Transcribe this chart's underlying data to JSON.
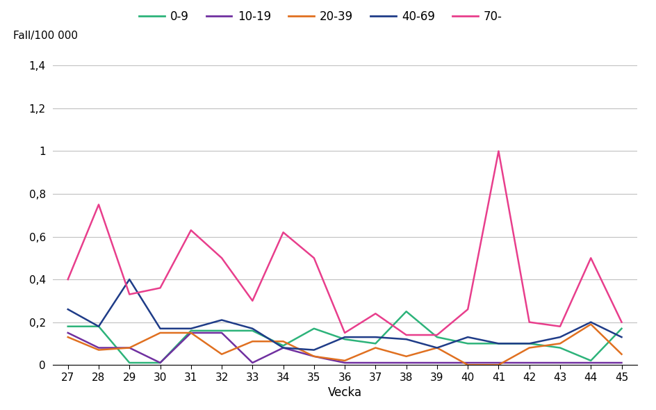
{
  "weeks": [
    27,
    28,
    29,
    30,
    31,
    32,
    33,
    34,
    35,
    36,
    37,
    38,
    39,
    40,
    41,
    42,
    43,
    44,
    45
  ],
  "series": {
    "0-9": [
      0.18,
      0.18,
      0.01,
      0.01,
      0.16,
      0.16,
      0.16,
      0.09,
      0.17,
      0.12,
      0.1,
      0.25,
      0.13,
      0.1,
      0.1,
      0.1,
      0.08,
      0.02,
      0.17
    ],
    "10-19": [
      0.15,
      0.08,
      0.08,
      0.01,
      0.15,
      0.15,
      0.01,
      0.08,
      0.04,
      0.01,
      0.01,
      0.01,
      0.01,
      0.01,
      0.01,
      0.01,
      0.01,
      0.01,
      0.01
    ],
    "20-39": [
      0.13,
      0.07,
      0.08,
      0.15,
      0.15,
      0.05,
      0.11,
      0.11,
      0.04,
      0.02,
      0.08,
      0.04,
      0.08,
      0.0,
      0.0,
      0.08,
      0.1,
      0.19,
      0.05
    ],
    "40-69": [
      0.26,
      0.18,
      0.4,
      0.17,
      0.17,
      0.21,
      0.17,
      0.08,
      0.07,
      0.13,
      0.13,
      0.12,
      0.08,
      0.13,
      0.1,
      0.1,
      0.13,
      0.2,
      0.13
    ],
    "70-": [
      0.4,
      0.75,
      0.33,
      0.36,
      0.63,
      0.5,
      0.3,
      0.62,
      0.5,
      0.15,
      0.24,
      0.14,
      0.14,
      0.26,
      1.0,
      0.2,
      0.18,
      0.5,
      0.2
    ]
  },
  "series_order": [
    "0-9",
    "10-19",
    "20-39",
    "40-69",
    "70-"
  ],
  "colors": {
    "0-9": "#2db37a",
    "10-19": "#7030a0",
    "20-39": "#e07020",
    "40-69": "#1f3c88",
    "70-": "#e83e8c"
  },
  "ylabel_text": "Fall/100 000",
  "xlabel": "Vecka",
  "ylim": [
    0,
    1.4
  ],
  "yticks": [
    0,
    0.2,
    0.4,
    0.6,
    0.8,
    1.0,
    1.2,
    1.4
  ],
  "ytick_labels": [
    "0",
    "0,2",
    "0,4",
    "0,6",
    "0,8",
    "1",
    "1,2",
    "1,4"
  ],
  "bg_color": "#ffffff",
  "grid_color": "#c0c0c0"
}
